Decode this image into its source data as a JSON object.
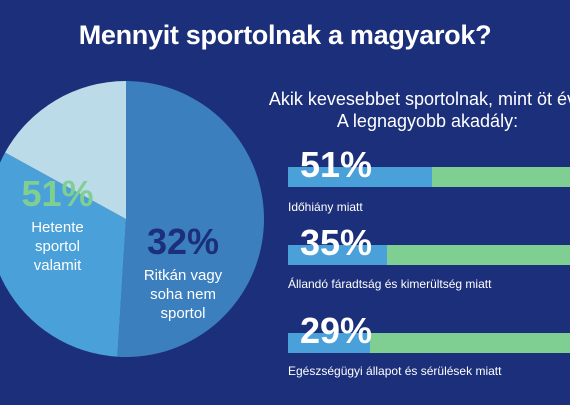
{
  "title": "Mennyit sportolnak a magyarok?",
  "pie": {
    "slices": [
      {
        "pct_label": "51%",
        "label_lines": [
          "Hetente",
          "sportol",
          "valamit"
        ],
        "value": 51,
        "color": "#3b7fbf"
      },
      {
        "pct_label": "32%",
        "label_lines": [
          "Ritkán vagy",
          "soha nem",
          "sportol"
        ],
        "value": 32,
        "color": "#4aa0d8"
      },
      {
        "pct_label": "",
        "label_lines": [],
        "value": 17,
        "color": "#bcdbe9"
      }
    ],
    "pct_color_1": "#7fcf92",
    "pct_color_2": "#1c2f7a"
  },
  "right": {
    "heading_line1": "Akik kevesebbet sportolnak, mint öt éve",
    "heading_line2": "A legnagyobb akadály:"
  },
  "chart_data": [
    {
      "type": "pie",
      "title": "Mennyit sportolnak a magyarok?",
      "categories": [
        "Hetente sportol valamit",
        "Ritkán vagy soha nem sportol",
        ""
      ],
      "values": [
        51,
        32,
        17
      ]
    },
    {
      "type": "bar",
      "title": "Akik kevesebbet sportolnak, mint öt éve A legnagyobb akadály:",
      "categories": [
        "Időhiány miatt",
        "Állandó fáradtság és kimerültség miatt",
        "Egészségügyi állapot és sérülések miatt"
      ],
      "values": [
        51,
        35,
        29
      ],
      "value_labels": [
        "51%",
        "35%",
        "29%"
      ],
      "ylim": [
        0,
        100
      ]
    }
  ],
  "colors": {
    "background": "#1c2f7a",
    "bar_fill": "#4aa0d8",
    "bar_track": "#7fcf92"
  }
}
